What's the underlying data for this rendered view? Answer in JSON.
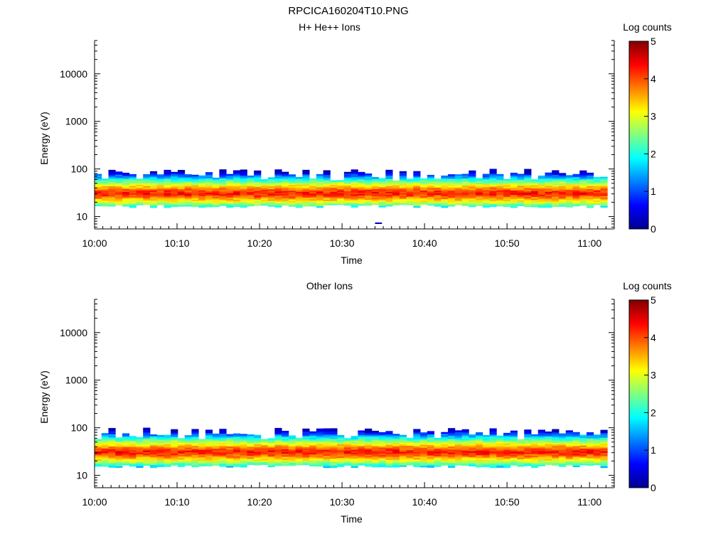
{
  "figure": {
    "title": "RPCICA160204T10.PNG"
  },
  "chart_data": [
    {
      "type": "heatmap",
      "title": "H+ He++ Ions",
      "xlabel": "Time",
      "ylabel": "Energy (eV)",
      "xlim": [
        "10:00",
        "11:03"
      ],
      "ylim": [
        5.5,
        50000
      ],
      "yscale": "log",
      "xticks": [
        "10:00",
        "10:10",
        "10:20",
        "10:30",
        "10:40",
        "10:50",
        "11:00"
      ],
      "yticks": [
        10,
        100,
        1000,
        10000
      ],
      "colorbar": {
        "label": "Log counts",
        "min": 0,
        "max": 5,
        "ticks": [
          0,
          1,
          2,
          3,
          4,
          5
        ]
      },
      "time_bins_minutes": 0.84,
      "energy_core_eV": [
        17,
        80
      ],
      "peak_energy_eV": 30,
      "peak_log_counts": 4.3,
      "isolated_pixels": [
        {
          "time": "10:34",
          "energy_eV": 7,
          "log_counts": 0.3
        }
      ],
      "grid": false
    },
    {
      "type": "heatmap",
      "title": "Other Ions",
      "xlabel": "Time",
      "ylabel": "Energy (eV)",
      "xlim": [
        "10:00",
        "11:03"
      ],
      "ylim": [
        5.5,
        50000
      ],
      "yscale": "log",
      "xticks": [
        "10:00",
        "10:10",
        "10:20",
        "10:30",
        "10:40",
        "10:50",
        "11:00"
      ],
      "yticks": [
        10,
        100,
        1000,
        10000
      ],
      "colorbar": {
        "label": "Log counts",
        "min": 0,
        "max": 5,
        "ticks": [
          0,
          1,
          2,
          3,
          4,
          5
        ]
      },
      "time_bins_minutes": 0.84,
      "energy_core_eV": [
        16,
        80
      ],
      "peak_energy_eV": 30,
      "peak_log_counts": 4.3,
      "isolated_pixels": [],
      "grid": false
    }
  ]
}
